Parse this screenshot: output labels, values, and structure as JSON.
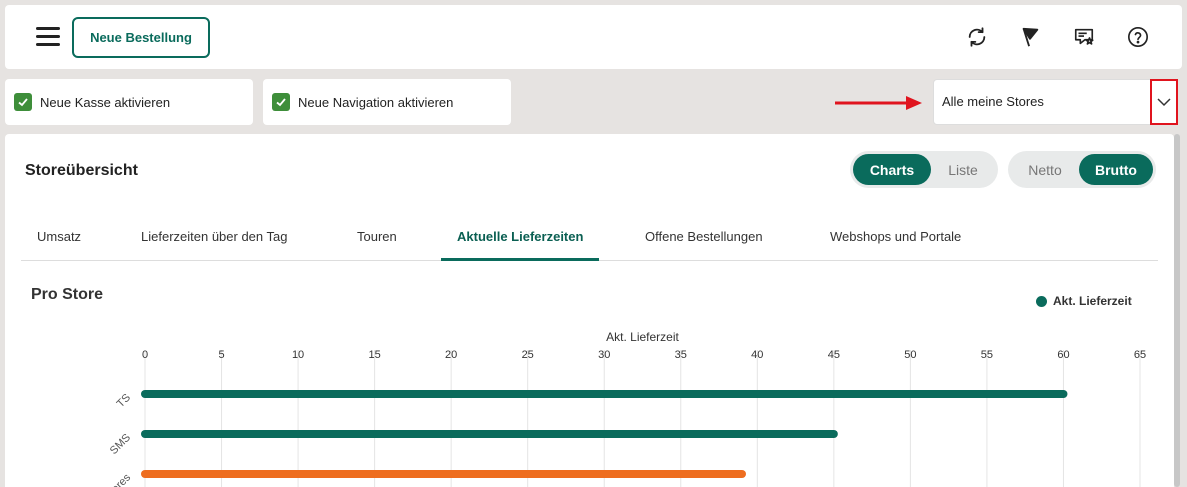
{
  "header": {
    "menu_icon": "hamburger-menu-icon",
    "new_order_label": "Neue Bestellung",
    "icons": [
      "refresh-icon",
      "flag-icon",
      "chat-star-icon",
      "help-icon"
    ]
  },
  "toggles": {
    "new_checkout_label": "Neue Kasse aktivieren",
    "new_navigation_label": "Neue Navigation aktivieren"
  },
  "store_select": {
    "value": "Alle meine Stores"
  },
  "panel": {
    "title": "Storeübersicht",
    "view_toggle": {
      "options": [
        "Charts",
        "Liste"
      ],
      "selected": "Charts"
    },
    "tax_toggle": {
      "options": [
        "Netto",
        "Brutto"
      ],
      "selected": "Brutto"
    },
    "tabs": [
      "Umsatz",
      "Lieferzeiten über den Tag",
      "Touren",
      "Aktuelle Lieferzeiten",
      "Offene Bestellungen",
      "Webshops und Portale"
    ],
    "active_tab": "Aktuelle Lieferzeiten"
  },
  "chart_data": {
    "type": "bar",
    "orientation": "horizontal",
    "title": "Pro Store",
    "xlabel": "Akt. Lieferzeit",
    "xlim": [
      0,
      65
    ],
    "xticks": [
      0,
      5,
      10,
      15,
      20,
      25,
      30,
      35,
      40,
      45,
      50,
      55,
      60,
      65
    ],
    "x_axis_position": "top",
    "grid": true,
    "legend": {
      "position": "top-right",
      "entries": [
        "Akt. Lieferzeit"
      ]
    },
    "categories": [
      "TS",
      "SMS",
      "ores"
    ],
    "values": [
      60,
      45,
      39
    ],
    "colors": [
      "#0a6b5c",
      "#0a6b5c",
      "#ee6d1f"
    ]
  }
}
